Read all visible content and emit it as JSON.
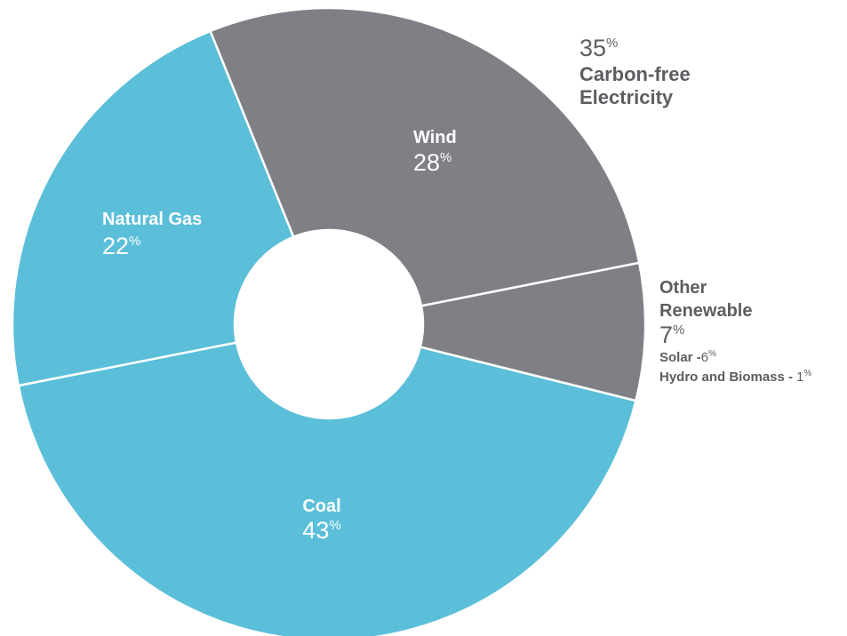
{
  "chart_data": {
    "type": "pie",
    "style": "donut",
    "percent_sign": "%",
    "slices": [
      {
        "name": "Coal",
        "value": 43,
        "color": "#5bbfd9"
      },
      {
        "name": "Natural Gas",
        "value": 22,
        "color": "#5bbfd9"
      },
      {
        "name": "Wind",
        "value": 28,
        "color": "#7f8085"
      },
      {
        "name": "Other Renewable",
        "value": 7,
        "color": "#7f8085",
        "breakdown": [
          {
            "name": "Solar -",
            "value": "6"
          },
          {
            "name": "Hydro and Biomass -",
            "value": "1"
          }
        ]
      }
    ],
    "annotation": {
      "value": "35",
      "line1": "Carbon-free",
      "line2": "Electricity"
    },
    "label_text_color": "#ffffff",
    "external_label_color": "#5d5e62"
  }
}
